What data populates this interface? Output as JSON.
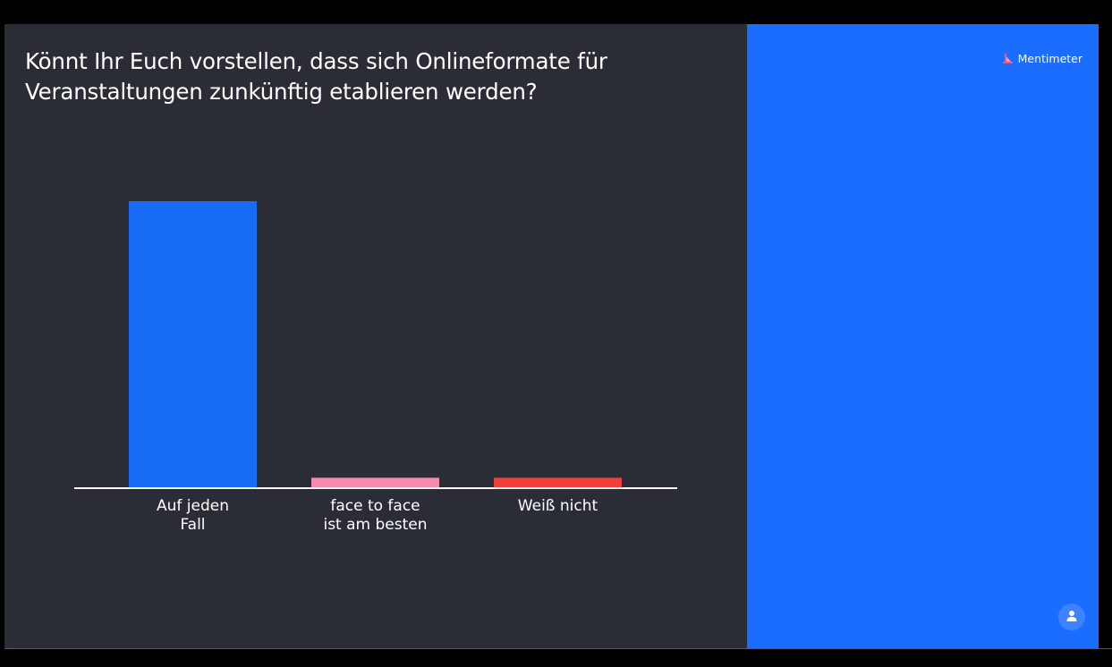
{
  "slide": {
    "question": "Könnt Ihr Euch vorstellen, dass sich Onlineformate für Veranstaltungen zunkünftig etablieren werden?"
  },
  "brand": {
    "name": "Mentimeter",
    "logo_icon": "mentimeter-logo-icon"
  },
  "side_panel": {
    "color": "#1a6dff",
    "avatar_icon": "user-icon"
  },
  "chart_data": {
    "type": "bar",
    "categories": [
      [
        "Auf jeden",
        "Fall"
      ],
      [
        "face to face",
        "ist am besten"
      ],
      [
        "Weiß nicht"
      ]
    ],
    "values": [
      30,
      1,
      1
    ],
    "colors": [
      "#196cf7",
      "#f48aae",
      "#f0403d"
    ],
    "ylim": [
      0,
      30
    ],
    "title": "",
    "xlabel": "",
    "ylabel": ""
  }
}
